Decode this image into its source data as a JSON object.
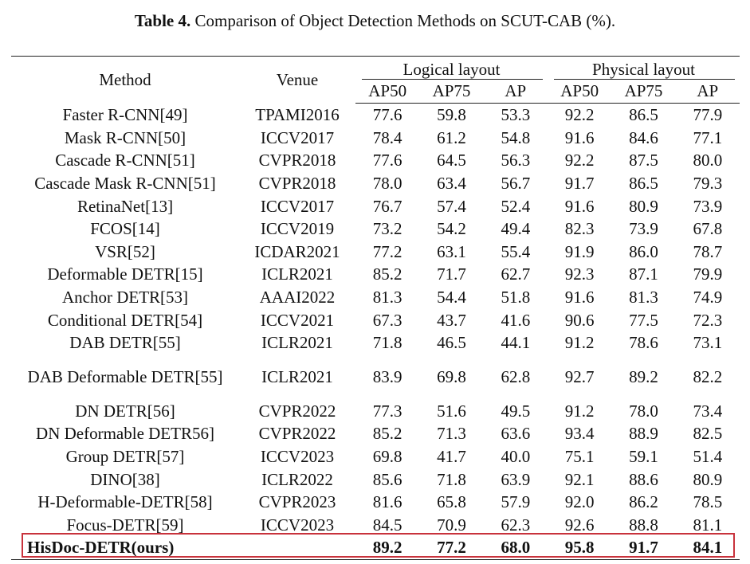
{
  "caption": {
    "label": "Table 4.",
    "text": "Comparison of Object Detection Methods on SCUT-CAB (%)."
  },
  "header": {
    "method": "Method",
    "venue": "Venue",
    "group_logical": "Logical layout",
    "group_physical": "Physical layout",
    "cols": [
      "AP50",
      "AP75",
      "AP",
      "AP50",
      "AP75",
      "AP"
    ]
  },
  "rows": [
    {
      "method": "Faster R-CNN[49]",
      "venue": "TPAMI2016",
      "values": [
        "77.6",
        "59.8",
        "53.3",
        "92.2",
        "86.5",
        "77.9"
      ]
    },
    {
      "method": "Mask R-CNN[50]",
      "venue": "ICCV2017",
      "values": [
        "78.4",
        "61.2",
        "54.8",
        "91.6",
        "84.6",
        "77.1"
      ]
    },
    {
      "method": "Cascade R-CNN[51]",
      "venue": "CVPR2018",
      "values": [
        "77.6",
        "64.5",
        "56.3",
        "92.2",
        "87.5",
        "80.0"
      ]
    },
    {
      "method": "Cascade Mask R-CNN[51]",
      "venue": "CVPR2018",
      "values": [
        "78.0",
        "63.4",
        "56.7",
        "91.7",
        "86.5",
        "79.3"
      ]
    },
    {
      "method": "RetinaNet[13]",
      "venue": "ICCV2017",
      "values": [
        "76.7",
        "57.4",
        "52.4",
        "91.6",
        "80.9",
        "73.9"
      ]
    },
    {
      "method": "FCOS[14]",
      "venue": "ICCV2019",
      "values": [
        "73.2",
        "54.2",
        "49.4",
        "82.3",
        "73.9",
        "67.8"
      ]
    },
    {
      "method": "VSR[52]",
      "venue": "ICDAR2021",
      "values": [
        "77.2",
        "63.1",
        "55.4",
        "91.9",
        "86.0",
        "78.7"
      ]
    },
    {
      "method": "Deformable DETR[15]",
      "venue": "ICLR2021",
      "values": [
        "85.2",
        "71.7",
        "62.7",
        "92.3",
        "87.1",
        "79.9"
      ]
    },
    {
      "method": "Anchor DETR[53]",
      "venue": "AAAI2022",
      "values": [
        "81.3",
        "54.4",
        "51.8",
        "91.6",
        "81.3",
        "74.9"
      ]
    },
    {
      "method": "Conditional DETR[54]",
      "venue": "ICCV2021",
      "values": [
        "67.3",
        "43.7",
        "41.6",
        "90.6",
        "77.5",
        "72.3"
      ]
    },
    {
      "method": "DAB DETR[55]",
      "venue": "ICLR2021",
      "values": [
        "71.8",
        "46.5",
        "44.1",
        "91.2",
        "78.6",
        "73.1"
      ]
    },
    {
      "method": "DAB Deformable DETR[55]",
      "venue": "ICLR2021",
      "values": [
        "83.9",
        "69.8",
        "62.8",
        "92.7",
        "89.2",
        "82.2"
      ]
    },
    {
      "method": "DN DETR[56]",
      "venue": "CVPR2022",
      "values": [
        "77.3",
        "51.6",
        "49.5",
        "91.2",
        "78.0",
        "73.4"
      ]
    },
    {
      "method": "DN Deformable DETR56]",
      "venue": "CVPR2022",
      "values": [
        "85.2",
        "71.3",
        "63.6",
        "93.4",
        "88.9",
        "82.5"
      ]
    },
    {
      "method": "Group DETR[57]",
      "venue": "ICCV2023",
      "values": [
        "69.8",
        "41.7",
        "40.0",
        "75.1",
        "59.1",
        "51.4"
      ]
    },
    {
      "method": "DINO[38]",
      "venue": "ICLR2022",
      "values": [
        "85.6",
        "71.8",
        "63.9",
        "92.1",
        "88.6",
        "80.9"
      ]
    },
    {
      "method": "H-Deformable-DETR[58]",
      "venue": "CVPR2023",
      "values": [
        "81.6",
        "65.8",
        "57.9",
        "92.0",
        "86.2",
        "78.5"
      ]
    },
    {
      "method": "Focus-DETR[59]",
      "venue": "ICCV2023",
      "values": [
        "84.5",
        "70.9",
        "62.3",
        "92.6",
        "88.8",
        "81.1"
      ]
    },
    {
      "method": "HisDoc-DETR(ours)",
      "venue": "",
      "values": [
        "89.2",
        "77.2",
        "68.0",
        "95.8",
        "91.7",
        "84.1"
      ]
    }
  ],
  "colors": {
    "highlight_border": "#c8323c",
    "rule": "#222222"
  }
}
